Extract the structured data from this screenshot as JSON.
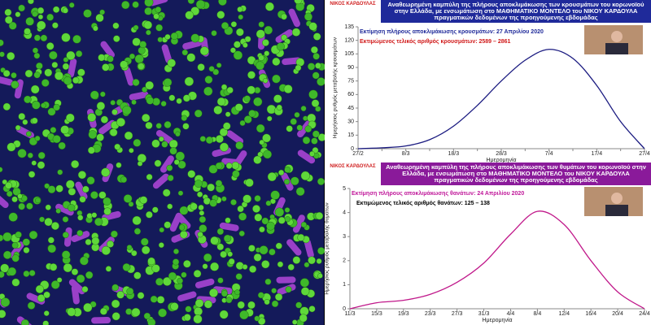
{
  "chart_data": [
    {
      "type": "line",
      "logo": "ΝΙΚΟΣ ΚΑΡΔΟΥΛΑΣ",
      "title": "Αναθεωρημένη καμπύλη της πλήρους αποκλιμάκωσης των κρουσμάτων του κορωνοϊού στην Ελλάδα, με ενσωμάτωση στο ΜΑΘΗΜΑΤΙΚΟ ΜΟΝΤΕΛΟ του ΝΙΚΟΥ ΚΑΡΔΟΥΛΑ πραγματικών δεδομένων της προηγούμενης εβδομάδας",
      "banner_color": "#1f2a9a",
      "annotations": [
        {
          "text": "Εκτίμηση πλήρους αποκλιμάκωσης κρουσμάτων: 27 Απριλίου 2020",
          "color": "#1f2a9a"
        },
        {
          "text": "Εκτιμώμενος τελικός αριθμός κρουσμάτων: 2589 – 2861",
          "color": "#d01818"
        }
      ],
      "xlabel": "Ημερομηνία",
      "ylabel": "Ημερήσιος ρυθμός μεταβολής κρουσμάτων",
      "categories": [
        "27/2",
        null,
        "8/3",
        null,
        "18/3",
        null,
        "28/3",
        null,
        "7/4",
        null,
        "17/4",
        null,
        "27/4"
      ],
      "values": [
        0,
        1,
        3,
        10,
        25,
        48,
        75,
        98,
        110,
        100,
        70,
        30,
        0
      ],
      "color": "#1a1a80",
      "ylim": [
        0,
        135
      ],
      "yticks": [
        0,
        15,
        30,
        45,
        60,
        75,
        90,
        105,
        120,
        135
      ]
    },
    {
      "type": "line",
      "logo": "ΝΙΚΟΣ ΚΑΡΔΟΥΛΑΣ",
      "title": "Αναθεωρημένη καμπύλη της πλήρους αποκλιμάκωσης των θυμάτων του κορωνοϊού στην Ελλάδα, με ενσωμάτωση στο ΜΑΘΗΜΑΤΙΚΟ ΜΟΝΤΕΛΟ του ΝΙΚΟΥ ΚΑΡΔΟΥΛΑ πραγματικών δεδομένων της προηγούμενης εβδομάδας",
      "banner_color": "#8a1a9a",
      "annotations": [
        {
          "text": "Εκτίμηση πλήρους αποκλιμάκωσης θανάτων: 24 Απριλίου 2020",
          "color": "#c0189a"
        },
        {
          "text": "Εκτιμώμενος τελικός αριθμός θανάτων: 125 – 138",
          "color": "#000000"
        }
      ],
      "xlabel": "Ημερομηνία",
      "ylabel": "Ημερήσιος ρυθμός μεταβολής θυμάτων",
      "categories": [
        "11/3",
        "15/3",
        "19/3",
        "23/3",
        "27/3",
        "31/3",
        "4/4",
        "8/4",
        "12/4",
        "16/4",
        "20/4",
        "24/4"
      ],
      "values": [
        0,
        0.25,
        0.35,
        0.6,
        1.1,
        1.9,
        3.1,
        4.05,
        3.5,
        2.0,
        0.7,
        0
      ],
      "color": "#c0188a",
      "ylim": [
        0,
        5
      ],
      "yticks": [
        0,
        1,
        2,
        3,
        4,
        5
      ]
    }
  ]
}
